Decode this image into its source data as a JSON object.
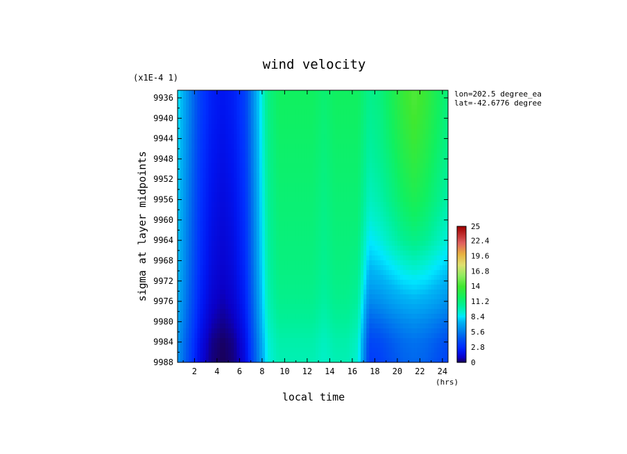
{
  "chart_data": {
    "type": "heatmap",
    "title": "wind velocity",
    "scale_note": "(x1E-4 1)",
    "xlabel": "local time",
    "xunit": "(hrs)",
    "ylabel": "sigma at layer midpoints",
    "info_lines": [
      "lon=202.5 degree_ea",
      "lat=-42.6776 degree"
    ],
    "x_ticks": [
      "2",
      "4",
      "6",
      "8",
      "10",
      "12",
      "14",
      "16",
      "18",
      "20",
      "22",
      "24"
    ],
    "x_tick_values": [
      2,
      4,
      6,
      8,
      10,
      12,
      14,
      16,
      18,
      20,
      22,
      24
    ],
    "xlim": [
      0.5,
      24.5
    ],
    "y_ticks": [
      "9936",
      "9940",
      "9944",
      "9948",
      "9952",
      "9956",
      "9960",
      "9964",
      "9968",
      "9972",
      "9976",
      "9980",
      "9984",
      "9988"
    ],
    "y_tick_values": [
      9936,
      9940,
      9944,
      9948,
      9952,
      9956,
      9960,
      9964,
      9968,
      9972,
      9976,
      9980,
      9984,
      9988
    ],
    "ylim": [
      9934.5,
      9988
    ],
    "colorbar_ticks": [
      "25",
      "22.4",
      "19.6",
      "16.8",
      "14",
      "11.2",
      "8.4",
      "5.6",
      "2.8",
      "0"
    ],
    "colorbar_tick_values": [
      25,
      22.4,
      19.6,
      16.8,
      14,
      11.2,
      8.4,
      5.6,
      2.8,
      0
    ],
    "colorbar_range": [
      0,
      25
    ],
    "x": [
      0.5,
      1.5,
      2.5,
      3.5,
      4.5,
      5.5,
      6.5,
      7.5,
      8.5,
      9.5,
      10.5,
      11.5,
      12.5,
      13.5,
      14.5,
      15.5,
      16.5,
      17.5,
      18.5,
      19.5,
      20.5,
      21.5,
      22.5,
      23.5,
      24.5
    ],
    "y": [
      9934.5,
      9936,
      9940,
      9944,
      9948,
      9952,
      9956,
      9960,
      9964,
      9968,
      9972,
      9976,
      9980,
      9984,
      9988
    ],
    "rows": [
      [
        8.6,
        6.0,
        3.6,
        2.4,
        2.0,
        2.4,
        3.6,
        7.2,
        11.0,
        12.0,
        12.0,
        12.0,
        12.0,
        11.5,
        12.0,
        12.0,
        12.0,
        10.8,
        11.2,
        12.3,
        13.6,
        14.4,
        13.6,
        12.3,
        11.2
      ],
      [
        8.6,
        6.0,
        3.6,
        2.4,
        2.0,
        2.4,
        3.6,
        7.2,
        11.0,
        12.0,
        12.0,
        12.0,
        12.0,
        11.5,
        12.0,
        12.0,
        12.0,
        10.8,
        11.2,
        12.3,
        13.6,
        14.4,
        13.6,
        12.3,
        11.2
      ],
      [
        8.5,
        5.9,
        3.5,
        2.3,
        1.9,
        2.3,
        3.5,
        7.1,
        10.9,
        11.9,
        11.9,
        11.9,
        11.9,
        11.4,
        11.9,
        11.9,
        11.9,
        10.6,
        11.0,
        12.1,
        13.3,
        14.1,
        13.3,
        12.1,
        11.0
      ],
      [
        8.4,
        5.8,
        3.4,
        2.2,
        1.8,
        2.2,
        3.4,
        7.0,
        10.8,
        11.8,
        11.8,
        11.8,
        11.8,
        11.3,
        11.8,
        11.8,
        11.8,
        10.4,
        10.9,
        11.9,
        13.0,
        13.8,
        13.0,
        11.9,
        10.9
      ],
      [
        8.3,
        5.7,
        3.3,
        2.1,
        1.7,
        2.1,
        3.3,
        6.9,
        10.7,
        11.7,
        11.7,
        11.7,
        11.7,
        11.2,
        11.7,
        11.7,
        11.7,
        10.2,
        10.7,
        11.6,
        12.7,
        13.4,
        12.7,
        11.6,
        10.7
      ],
      [
        8.2,
        5.6,
        3.2,
        2.0,
        1.6,
        2.0,
        3.2,
        6.8,
        10.6,
        11.6,
        11.6,
        11.6,
        11.6,
        11.1,
        11.6,
        11.6,
        11.6,
        9.9,
        10.4,
        11.3,
        12.3,
        13.0,
        12.3,
        11.3,
        10.4
      ],
      [
        8.1,
        5.5,
        3.1,
        1.9,
        1.5,
        1.9,
        3.1,
        6.7,
        10.5,
        11.5,
        11.5,
        11.5,
        11.5,
        11.0,
        11.5,
        11.5,
        11.5,
        9.6,
        10.1,
        11.0,
        11.9,
        12.5,
        11.9,
        11.0,
        10.1
      ],
      [
        8.0,
        5.4,
        3.0,
        1.8,
        1.4,
        1.8,
        3.0,
        6.6,
        10.4,
        11.4,
        11.4,
        11.4,
        11.4,
        10.9,
        11.4,
        11.4,
        11.4,
        9.1,
        9.6,
        10.4,
        11.3,
        11.8,
        11.3,
        10.4,
        9.6
      ],
      [
        7.9,
        5.3,
        2.9,
        1.7,
        1.3,
        1.7,
        2.9,
        6.5,
        10.3,
        11.3,
        11.3,
        11.3,
        11.3,
        10.8,
        11.3,
        11.3,
        11.2,
        8.5,
        9.0,
        9.8,
        10.6,
        11.0,
        10.6,
        9.8,
        9.0
      ],
      [
        7.8,
        5.2,
        2.8,
        1.6,
        1.2,
        1.6,
        2.8,
        6.4,
        10.2,
        11.2,
        11.2,
        11.2,
        11.2,
        10.7,
        11.2,
        11.2,
        11.0,
        7.8,
        8.2,
        8.8,
        9.4,
        9.8,
        9.4,
        8.8,
        8.2
      ],
      [
        7.6,
        5.0,
        2.6,
        1.4,
        1.0,
        1.4,
        2.6,
        6.2,
        10.0,
        11.0,
        11.0,
        11.0,
        11.0,
        10.5,
        11.0,
        11.0,
        10.7,
        7.0,
        7.3,
        7.8,
        8.3,
        8.5,
        8.3,
        7.8,
        7.3
      ],
      [
        7.4,
        4.8,
        2.4,
        1.2,
        0.8,
        1.2,
        2.4,
        6.0,
        9.8,
        10.8,
        10.8,
        10.8,
        10.8,
        10.3,
        10.8,
        10.8,
        10.4,
        6.0,
        6.3,
        6.8,
        7.2,
        7.4,
        7.2,
        6.8,
        6.3
      ],
      [
        7.1,
        4.5,
        2.1,
        0.9,
        0.5,
        0.9,
        2.1,
        5.7,
        9.5,
        10.5,
        10.5,
        10.5,
        10.5,
        10.0,
        10.5,
        10.5,
        10.0,
        4.8,
        5.1,
        5.6,
        6.0,
        6.2,
        6.0,
        5.6,
        5.1
      ],
      [
        6.7,
        4.1,
        1.7,
        0.5,
        0.15,
        0.5,
        1.7,
        5.3,
        9.1,
        10.1,
        10.1,
        10.1,
        10.1,
        9.6,
        10.1,
        10.1,
        9.5,
        3.8,
        4.0,
        4.6,
        5.1,
        5.3,
        5.1,
        4.6,
        4.0
      ],
      [
        6.5,
        3.9,
        1.5,
        0.4,
        0.05,
        0.4,
        1.5,
        5.1,
        8.9,
        9.9,
        9.9,
        9.9,
        9.9,
        9.4,
        9.9,
        9.9,
        9.2,
        3.4,
        3.6,
        4.2,
        4.8,
        5.0,
        4.8,
        4.2,
        3.6
      ]
    ]
  },
  "colors": {
    "stops": [
      [
        0.0,
        "#1a0050"
      ],
      [
        0.04,
        "#0a00c8"
      ],
      [
        0.08,
        "#0014f0"
      ],
      [
        0.12,
        "#0030ff"
      ],
      [
        0.18,
        "#0058f0"
      ],
      [
        0.24,
        "#0088ee"
      ],
      [
        0.3,
        "#00b4f4"
      ],
      [
        0.34,
        "#00e8ff"
      ],
      [
        0.37,
        "#00f0d0"
      ],
      [
        0.42,
        "#00f098"
      ],
      [
        0.48,
        "#10f060"
      ],
      [
        0.56,
        "#40e830"
      ],
      [
        0.64,
        "#90ec60"
      ],
      [
        0.72,
        "#e0e070"
      ],
      [
        0.8,
        "#e8b040"
      ],
      [
        0.88,
        "#e06060"
      ],
      [
        1.0,
        "#a00000"
      ]
    ]
  }
}
